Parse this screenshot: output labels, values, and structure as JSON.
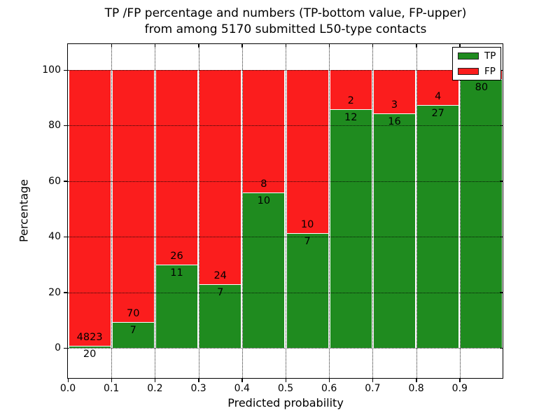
{
  "title": {
    "line1": "TP /FP percentage and numbers (TP-bottom value, FP-upper)",
    "line2": "from among 5170 submitted L50-type contacts"
  },
  "axes": {
    "xlabel": "Predicted probability",
    "ylabel": "Percentage",
    "xtick_labels": [
      "0.0",
      "0.1",
      "0.2",
      "0.3",
      "0.4",
      "0.5",
      "0.6",
      "0.7",
      "0.8",
      "0.9"
    ],
    "ytick_labels": [
      "0",
      "20",
      "40",
      "60",
      "80",
      "100"
    ],
    "ytick_values": [
      0,
      20,
      40,
      60,
      80,
      100
    ]
  },
  "legend": {
    "entries": [
      {
        "label": "TP",
        "color": "#1f8b1f",
        "swatch": "green-swatch"
      },
      {
        "label": "FP",
        "color": "#fb1d1d",
        "swatch": "red-swatch"
      }
    ],
    "position": "upper-right"
  },
  "colors": {
    "tp_green": "#1f8b1f",
    "fp_red": "#fb1d1d",
    "background": "#ffffff",
    "frame": "#000000",
    "grid": "#000000"
  },
  "chart_data": {
    "type": "bar",
    "stacked": true,
    "title": "TP /FP percentage and numbers (TP-bottom value, FP-upper) from among 5170 submitted L50-type contacts",
    "xlabel": "Predicted probability",
    "ylabel": "Percentage",
    "xlim": [
      0.0,
      1.0
    ],
    "ylim": [
      -10.8,
      109.3
    ],
    "grid": "dotted",
    "legend_position": "upper right",
    "bin_width": 0.1,
    "bin_starts": [
      0.0,
      0.1,
      0.2,
      0.3,
      0.4,
      0.5,
      0.6,
      0.7,
      0.8,
      0.9
    ],
    "series": [
      {
        "name": "TP",
        "color": "#1f8b1f",
        "counts": [
          20,
          7,
          11,
          7,
          10,
          7,
          12,
          16,
          27,
          80
        ],
        "count_labels": [
          "20",
          "7",
          "11",
          "7",
          "10",
          "7",
          "12",
          "16",
          "27",
          "80"
        ],
        "pct": [
          0.41,
          9.09,
          29.73,
          22.58,
          55.56,
          41.18,
          85.71,
          84.21,
          87.1,
          96.39
        ]
      },
      {
        "name": "FP",
        "color": "#fb1d1d",
        "counts": [
          4823,
          70,
          26,
          24,
          8,
          10,
          2,
          3,
          4,
          null
        ],
        "count_labels": [
          "4823",
          "70",
          "26",
          "24",
          "8",
          "10",
          "2",
          "3",
          "4",
          ""
        ],
        "pct": [
          99.59,
          90.91,
          70.27,
          77.42,
          44.44,
          58.82,
          14.29,
          15.79,
          12.9,
          3.61
        ]
      }
    ],
    "note": "bars stack to 100%; TP count label below segment boundary, FP count label above it; last FP label hidden behind legend"
  }
}
